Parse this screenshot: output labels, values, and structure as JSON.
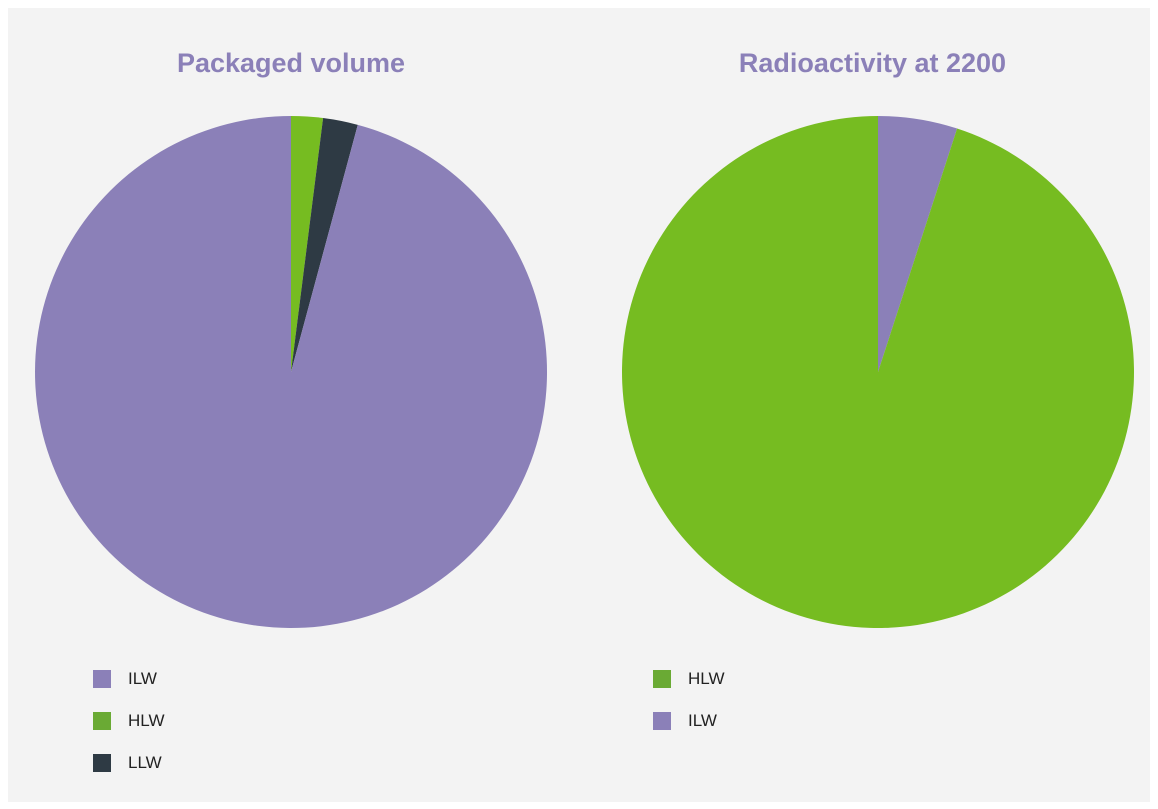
{
  "chart_data": [
    {
      "type": "pie",
      "title": "Packaged volume",
      "slices": [
        {
          "label": "HLW",
          "value": 2.0,
          "color": "#76bc21"
        },
        {
          "label": "LLW",
          "value": 2.2,
          "color": "#2e3a44"
        },
        {
          "label": "ILW",
          "value": 95.8,
          "color": "#8b80b8"
        }
      ],
      "legend": [
        {
          "label": "ILW",
          "color": "#8b80b8"
        },
        {
          "label": "HLW",
          "color": "#6aaa34"
        },
        {
          "label": "LLW",
          "color": "#2e3a44"
        }
      ],
      "legend_position": "bottom-left"
    },
    {
      "type": "pie",
      "title": "Radioactivity at 2200",
      "slices": [
        {
          "label": "ILW",
          "value": 5.0,
          "color": "#8b80b8"
        },
        {
          "label": "HLW",
          "value": 95.0,
          "color": "#76bc21"
        }
      ],
      "legend": [
        {
          "label": "HLW",
          "color": "#6aaa34"
        },
        {
          "label": "ILW",
          "color": "#8b80b8"
        }
      ],
      "legend_position": "bottom-left"
    }
  ]
}
